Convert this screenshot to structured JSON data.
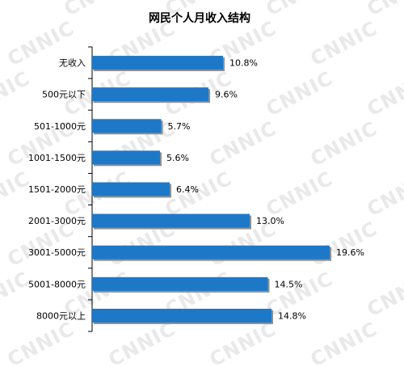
{
  "watermark": "CNNIC",
  "chart_data": {
    "type": "bar",
    "orientation": "horizontal",
    "title": "网民个人月收入结构",
    "categories": [
      "无收入",
      "500元以下",
      "501-1000元",
      "1001-1500元",
      "1501-2000元",
      "2001-3000元",
      "3001-5000元",
      "5001-8000元",
      "8000元以上"
    ],
    "values": [
      10.8,
      9.6,
      5.7,
      5.6,
      6.4,
      13.0,
      19.6,
      14.5,
      14.8
    ],
    "value_labels": [
      "10.8%",
      "9.6%",
      "5.7%",
      "5.6%",
      "6.4%",
      "13.0%",
      "19.6%",
      "14.5%",
      "14.8%"
    ],
    "xlim": [
      0,
      20
    ],
    "grid": false,
    "legend": "none",
    "bar_color": "#1e78c8"
  }
}
